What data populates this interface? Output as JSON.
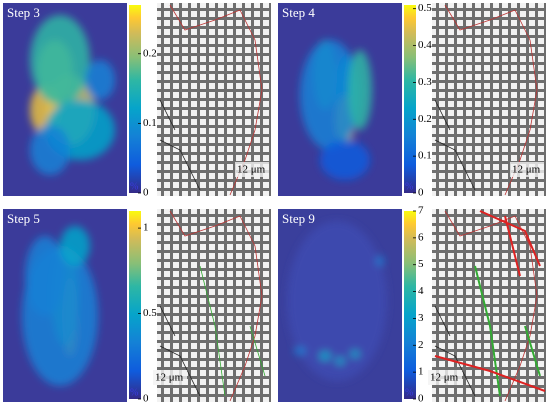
{
  "panels": [
    {
      "label": "Step 3",
      "colorbar": {
        "lim": [
          0,
          0.27
        ],
        "ticks": [
          0,
          0.1,
          0.2
        ],
        "unit": "%"
      },
      "scale": "12 μm"
    },
    {
      "label": "Step 4",
      "colorbar": {
        "lim": [
          0,
          0.51
        ],
        "ticks": [
          0,
          0.1,
          0.2,
          0.3,
          0.4,
          0.5
        ],
        "unit": "%"
      },
      "scale": "12 μm"
    },
    {
      "label": "Step 5",
      "colorbar": {
        "lim": [
          0,
          1.1
        ],
        "ticks": [
          0,
          0.5,
          1
        ],
        "unit": "%"
      },
      "scale": "12 μm"
    },
    {
      "label": "Step 9",
      "colorbar": {
        "lim": [
          0,
          7
        ],
        "ticks": [
          0,
          1,
          2,
          3,
          4,
          5,
          6,
          7
        ],
        "unit": "%"
      },
      "scale": "12 μm"
    }
  ]
}
